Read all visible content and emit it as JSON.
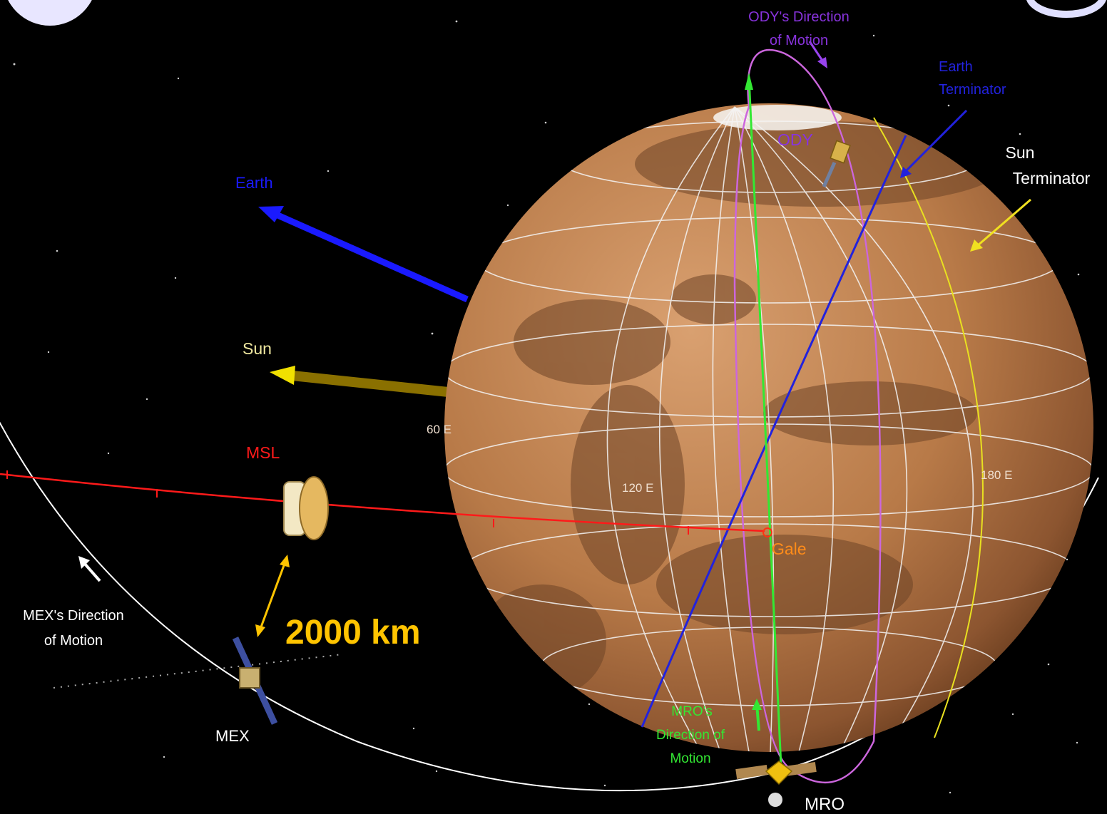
{
  "labels": {
    "ody_direction_line1": "ODY's Direction",
    "ody_direction_line2": "of Motion",
    "earth_terminator_line1": "Earth",
    "earth_terminator_line2": "Terminator",
    "sun_terminator_line1": "Sun",
    "sun_terminator_line2": "Terminator",
    "ody": "ODY",
    "earth": "Earth",
    "sun": "Sun",
    "msl": "MSL",
    "gale": "Gale",
    "lon_60e": "60 E",
    "lon_120e": "120 E",
    "lon_180e": "180 E",
    "mex_direction_line1": "MEX's  Direction",
    "mex_direction_line2": "of Motion",
    "distance": "2000 km",
    "mex": "MEX",
    "mro_direction_line1": "MRO's",
    "mro_direction_line2": "Direction  of",
    "mro_direction_line3": "Motion",
    "mro": "MRO"
  },
  "colors": {
    "background": "#000000",
    "mars_surface": "#b87a48",
    "earth_arrow": "#1a1aff",
    "sun_arrow": "#8a7000",
    "msl_trajectory": "#ff1a1a",
    "mro_orbit": "#33e833",
    "ody_orbit": "#cc66dd",
    "earth_terminator": "#2222dd",
    "sun_terminator": "#e8e020",
    "mex_orbit": "#ffffff",
    "distance_label": "#ffc400",
    "gale_label": "#ff8c1a"
  }
}
